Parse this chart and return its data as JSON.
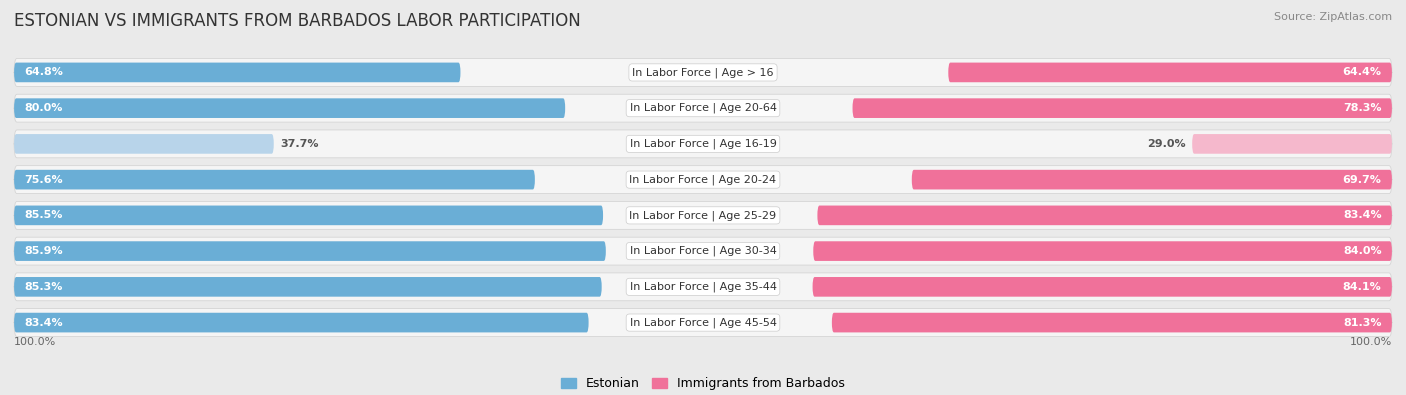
{
  "title": "ESTONIAN VS IMMIGRANTS FROM BARBADOS LABOR PARTICIPATION",
  "source": "Source: ZipAtlas.com",
  "categories": [
    "In Labor Force | Age > 16",
    "In Labor Force | Age 20-64",
    "In Labor Force | Age 16-19",
    "In Labor Force | Age 20-24",
    "In Labor Force | Age 25-29",
    "In Labor Force | Age 30-34",
    "In Labor Force | Age 35-44",
    "In Labor Force | Age 45-54"
  ],
  "estonian": [
    64.8,
    80.0,
    37.7,
    75.6,
    85.5,
    85.9,
    85.3,
    83.4
  ],
  "barbados": [
    64.4,
    78.3,
    29.0,
    69.7,
    83.4,
    84.0,
    84.1,
    81.3
  ],
  "max_value": 100.0,
  "estonian_color": "#6aaed6",
  "estonian_light_color": "#b8d4ea",
  "barbados_color": "#f0719a",
  "barbados_light_color": "#f5b8cc",
  "background_color": "#eaeaea",
  "row_bg_color": "#f5f5f5",
  "title_fontsize": 12,
  "cat_label_fontsize": 8,
  "value_fontsize": 8,
  "legend_fontsize": 9,
  "footer_value": "100.0%"
}
